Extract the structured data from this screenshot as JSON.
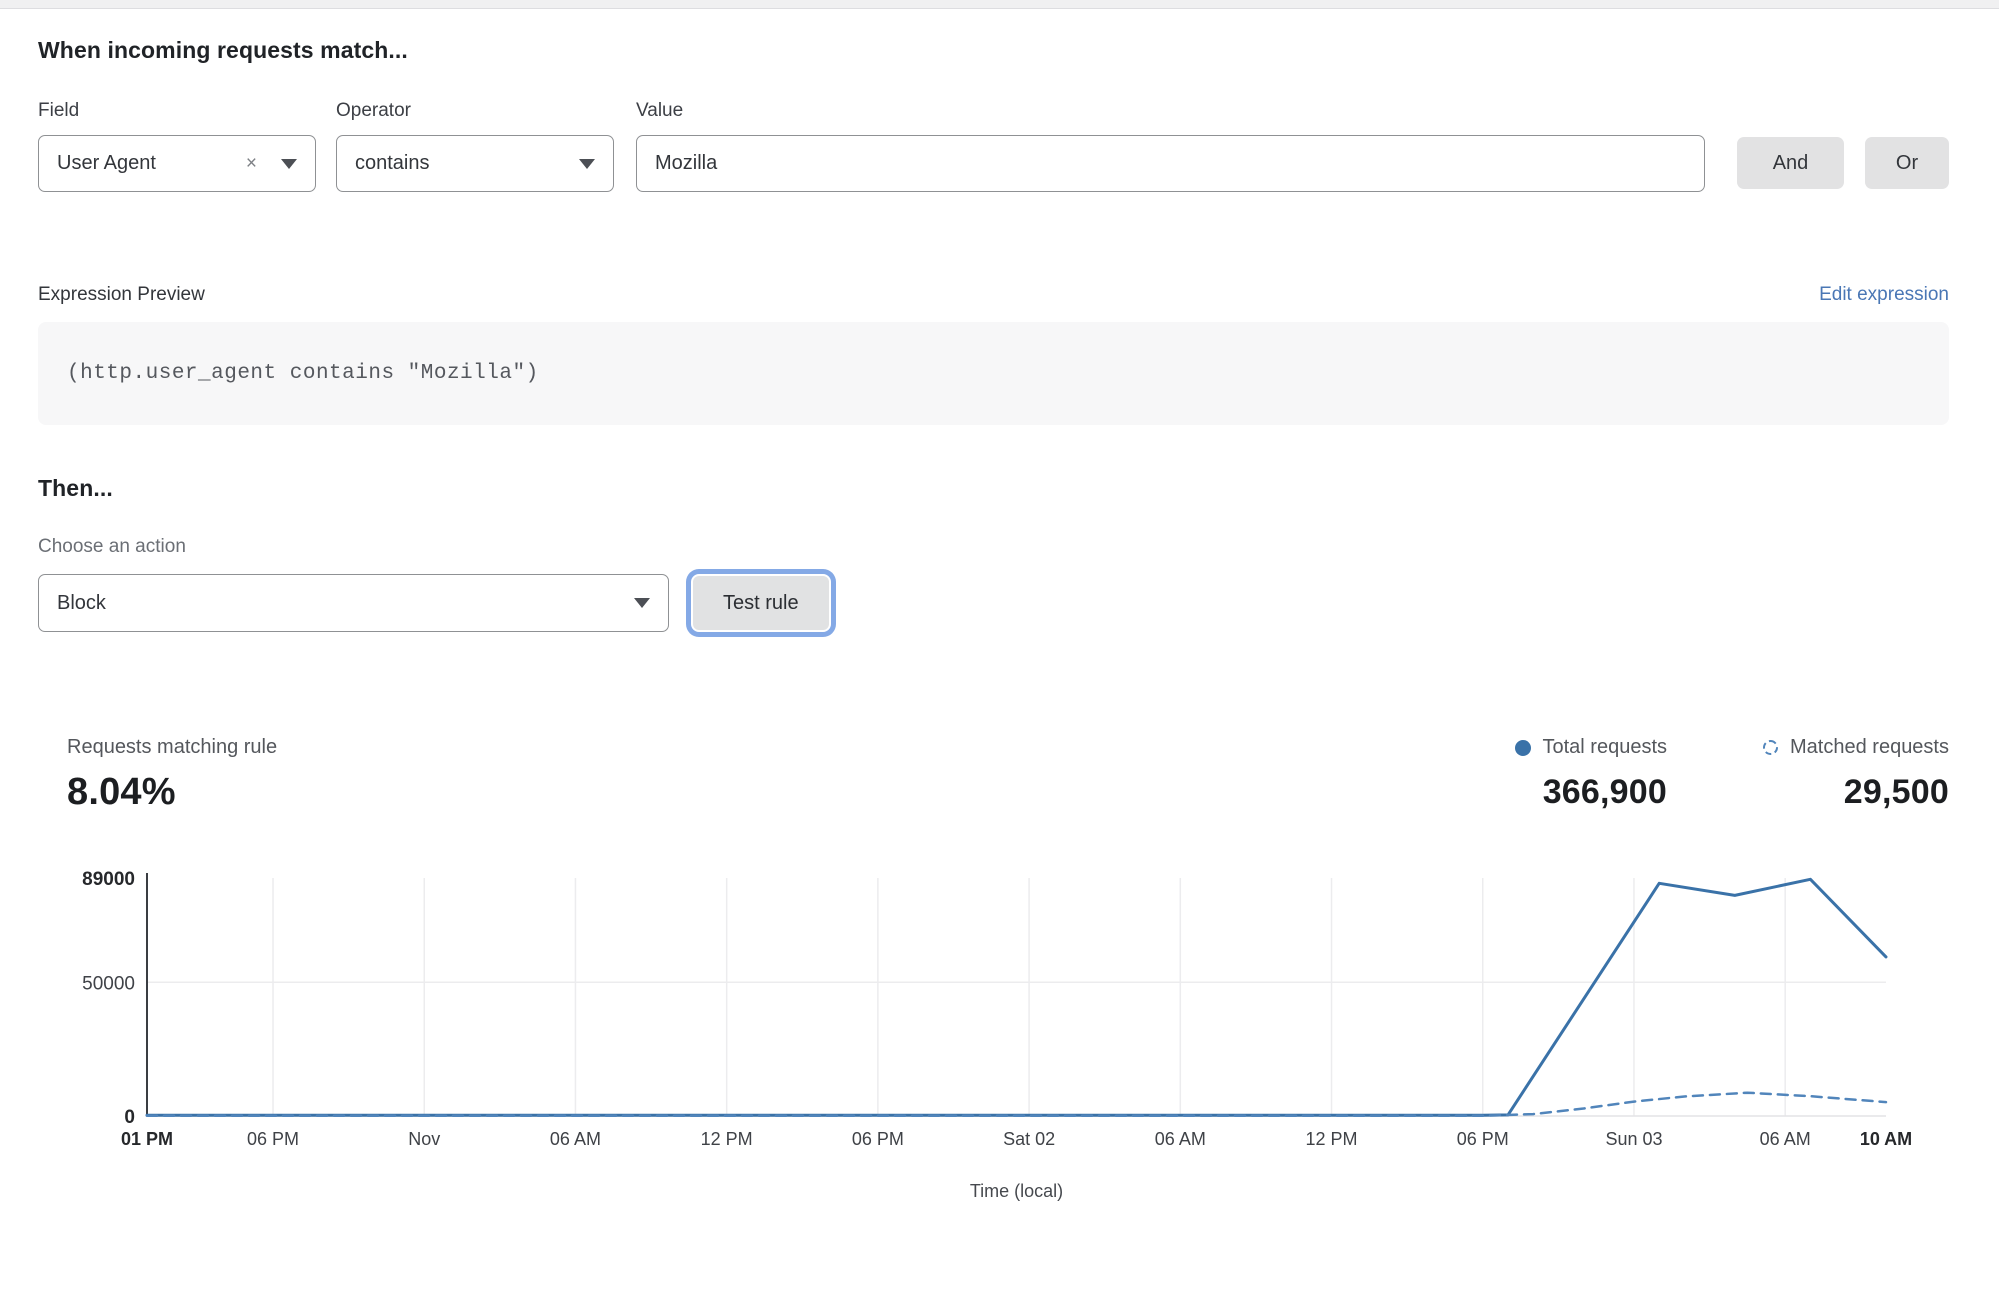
{
  "match_section": {
    "heading": "When incoming requests match...",
    "field_label": "Field",
    "operator_label": "Operator",
    "value_label": "Value",
    "field_value": "User Agent",
    "operator_value": "contains",
    "value_value": "Mozilla",
    "and_label": "And",
    "or_label": "Or"
  },
  "expression": {
    "label": "Expression Preview",
    "edit_link": "Edit expression",
    "code": "(http.user_agent contains \"Mozilla\")"
  },
  "action_section": {
    "heading": "Then...",
    "choose_label": "Choose an action",
    "action_value": "Block",
    "test_button_label": "Test rule"
  },
  "stats": {
    "matching_label": "Requests matching rule",
    "matching_value": "8.04%",
    "total_label": "Total requests",
    "total_value": "366,900",
    "matched_label": "Matched requests",
    "matched_value": "29,500"
  },
  "colors": {
    "accent_blue": "#3a72a8",
    "dashed_blue": "#5185bb",
    "link_blue": "#4a77b5",
    "focus_ring_blue": "#84a9e6",
    "button_gray": "#e2e2e3"
  },
  "chart_data": {
    "type": "line",
    "title": "",
    "xlabel": "Time (local)",
    "ylabel": "",
    "x_unit": "hours from Thu 01 PM",
    "xlim": [
      0,
      69
    ],
    "ylim": [
      0,
      89000
    ],
    "grid": "vertical gridlines at each x tick, horizontal at 50000",
    "legend_position": "above chart, right-aligned",
    "y_ticks": [
      {
        "value": 0,
        "label": "0",
        "bold": true
      },
      {
        "value": 50000,
        "label": "50000",
        "bold": false
      },
      {
        "value": 89000,
        "label": "89000",
        "bold": true
      }
    ],
    "x_ticks": [
      {
        "h": 0,
        "label": "01 PM",
        "bold": true
      },
      {
        "h": 5,
        "label": "06 PM",
        "bold": false
      },
      {
        "h": 11,
        "label": "Nov",
        "bold": false
      },
      {
        "h": 17,
        "label": "06 AM",
        "bold": false
      },
      {
        "h": 23,
        "label": "12 PM",
        "bold": false
      },
      {
        "h": 29,
        "label": "06 PM",
        "bold": false
      },
      {
        "h": 35,
        "label": "Sat 02",
        "bold": false
      },
      {
        "h": 41,
        "label": "06 AM",
        "bold": false
      },
      {
        "h": 47,
        "label": "12 PM",
        "bold": false
      },
      {
        "h": 53,
        "label": "06 PM",
        "bold": false
      },
      {
        "h": 59,
        "label": "Sun 03",
        "bold": false
      },
      {
        "h": 65,
        "label": "06 AM",
        "bold": false
      },
      {
        "h": 69,
        "label": "10 AM",
        "bold": true
      }
    ],
    "series": [
      {
        "name": "Total requests",
        "style": "solid",
        "color": "#3a72a8",
        "points": [
          [
            0,
            250
          ],
          [
            5,
            250
          ],
          [
            11,
            250
          ],
          [
            17,
            250
          ],
          [
            23,
            250
          ],
          [
            29,
            250
          ],
          [
            35,
            250
          ],
          [
            41,
            250
          ],
          [
            47,
            250
          ],
          [
            53,
            250
          ],
          [
            54,
            400
          ],
          [
            60,
            87000
          ],
          [
            63,
            82500
          ],
          [
            66,
            88500
          ],
          [
            69,
            59500
          ]
        ]
      },
      {
        "name": "Matched requests",
        "style": "dashed",
        "color": "#5185bb",
        "points": [
          [
            0,
            60
          ],
          [
            5,
            60
          ],
          [
            11,
            60
          ],
          [
            17,
            60
          ],
          [
            23,
            60
          ],
          [
            29,
            60
          ],
          [
            35,
            60
          ],
          [
            41,
            60
          ],
          [
            47,
            60
          ],
          [
            53,
            60
          ],
          [
            55,
            700
          ],
          [
            57,
            2800
          ],
          [
            59,
            5400
          ],
          [
            61,
            7300
          ],
          [
            63.5,
            8700
          ],
          [
            66,
            7400
          ],
          [
            69,
            5200
          ]
        ]
      }
    ],
    "chart_colors": {
      "grid": "#ececee",
      "zero_line": "#e4e4e6",
      "axis": "#3a3d42",
      "tick": "#3f4247",
      "tick_bold": "#26282b",
      "xlabel": "#46494e"
    }
  }
}
